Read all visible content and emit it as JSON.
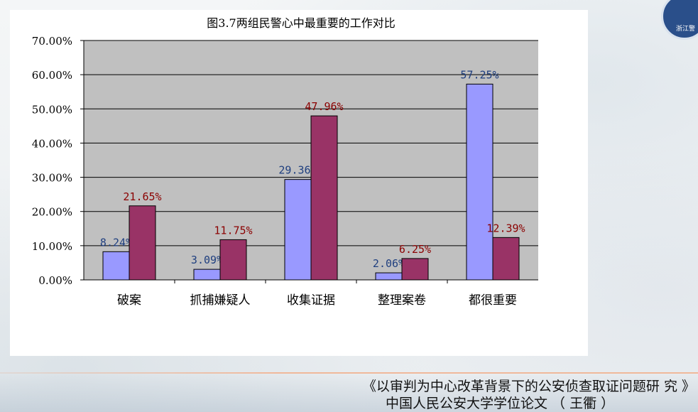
{
  "chart_data": {
    "type": "bar",
    "title": "图3.7两组民警心中最重要的工作对比",
    "categories": [
      "破案",
      "抓捕嫌疑人",
      "收集证据",
      "整理案卷",
      "都很重要"
    ],
    "series": [
      {
        "values": [
          8.24,
          3.09,
          29.36,
          2.06,
          57.25
        ],
        "color": "#9999ff"
      },
      {
        "values": [
          21.65,
          11.75,
          47.96,
          6.25,
          12.39
        ],
        "color": "#993366"
      }
    ],
    "data_labels": [
      [
        "8.24%",
        "3.09%",
        "29.36%",
        "2.06%",
        "57.25%"
      ],
      [
        "21.65%",
        "11.75%",
        "47.96%",
        "6.25%",
        "12.39%"
      ]
    ],
    "label_colors": [
      "#1f3f7f",
      "#8b0000"
    ],
    "yticks": [
      "0.00%",
      "10.00%",
      "20.00%",
      "30.00%",
      "40.00%",
      "50.00%",
      "60.00%",
      "70.00%"
    ],
    "ylim": [
      0,
      70
    ],
    "plot_background": "#c0c0c0",
    "grid": true,
    "xlabel": "",
    "ylabel": ""
  },
  "footer": {
    "line1": "《以审判为中心改革背景下的公安侦查取证问题研 究 》",
    "line2": "中国人民公安大学学位论文 （ 王衢 ）"
  },
  "logo": {
    "text": "浙江警"
  }
}
